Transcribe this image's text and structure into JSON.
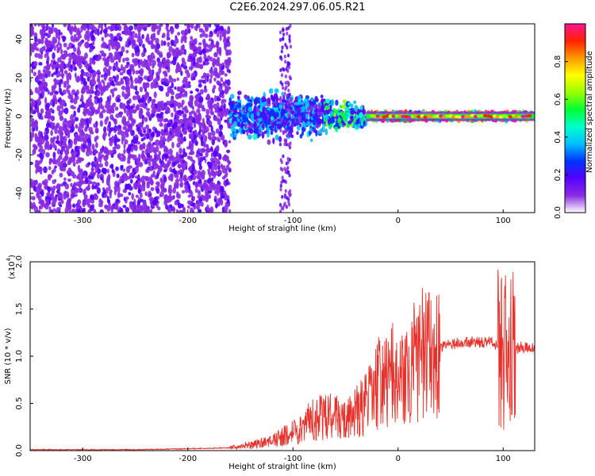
{
  "title": "C2E6.2024.297.06.05.R21",
  "chart_data": [
    {
      "type": "heatmap",
      "xlabel": "Height of straight line (km)",
      "ylabel": "Frequency (Hz)",
      "xlim": [
        -350,
        130
      ],
      "ylim": [
        -50,
        48
      ],
      "xticks": [
        -300,
        -200,
        -100,
        0,
        100
      ],
      "yticks": [
        -40,
        -20,
        0,
        20,
        40
      ],
      "colorbar": {
        "label": "Normalized spectral amplitude",
        "range": [
          0.0,
          1.0
        ],
        "ticks": [
          "0.0",
          "0.2",
          "0.4",
          "0.6",
          "0.8"
        ],
        "colors": [
          "#ffffff",
          "#8a2be2",
          "#5500ff",
          "#0033ff",
          "#00bfff",
          "#00ffcc",
          "#00ff33",
          "#99ff00",
          "#ffff00",
          "#ff9900",
          "#ff2200",
          "#ff1493"
        ]
      },
      "regions": [
        {
          "x_range": [
            -350,
            -160
          ],
          "freq_range": [
            -50,
            48
          ],
          "amplitude": 0.15
        },
        {
          "x_range": [
            -160,
            -70
          ],
          "freq_range": [
            -15,
            15
          ],
          "amplitude": 0.3
        },
        {
          "x_range": [
            -70,
            -30
          ],
          "freq_range": [
            -10,
            10
          ],
          "amplitude": 0.45
        },
        {
          "x_range": [
            -30,
            130
          ],
          "freq_range": [
            -2,
            2
          ],
          "amplitude": 0.95
        }
      ]
    },
    {
      "type": "line",
      "xlabel": "Height of straight line (km)",
      "ylabel": "SNR (10 * v/v)",
      "yscale_label": "(x10",
      "yscale_exp": "4",
      "yscale_close": ")",
      "xlim": [
        -350,
        130
      ],
      "ylim": [
        0.0,
        2.0
      ],
      "xticks": [
        -300,
        -200,
        -100,
        0,
        100
      ],
      "yticks": [
        "0.0",
        "0.5",
        "1.0",
        "1.5",
        "2.0"
      ],
      "line_color": "#e8302a",
      "series": [
        {
          "x": [
            -350,
            -300,
            -250,
            -200,
            -160,
            -140,
            -120,
            -110,
            -100,
            -90,
            -80,
            -70,
            -60,
            -50,
            -40,
            -30,
            -20,
            -10,
            -5,
            0,
            10,
            20,
            30,
            40,
            50,
            60,
            70,
            80,
            90,
            95,
            100,
            103,
            106,
            108,
            110,
            115,
            120,
            125,
            130
          ],
          "y": [
            0.01,
            0.01,
            0.01,
            0.02,
            0.03,
            0.06,
            0.1,
            0.15,
            0.2,
            0.25,
            0.35,
            0.35,
            0.4,
            0.3,
            0.4,
            0.5,
            0.7,
            0.75,
            0.8,
            0.65,
            0.85,
            1.0,
            1.05,
            1.1,
            1.12,
            1.15,
            1.15,
            1.15,
            1.15,
            1.1,
            1.0,
            1.2,
            0.7,
            1.15,
            1.05,
            1.1,
            1.1,
            1.08,
            1.1
          ]
        }
      ]
    }
  ]
}
